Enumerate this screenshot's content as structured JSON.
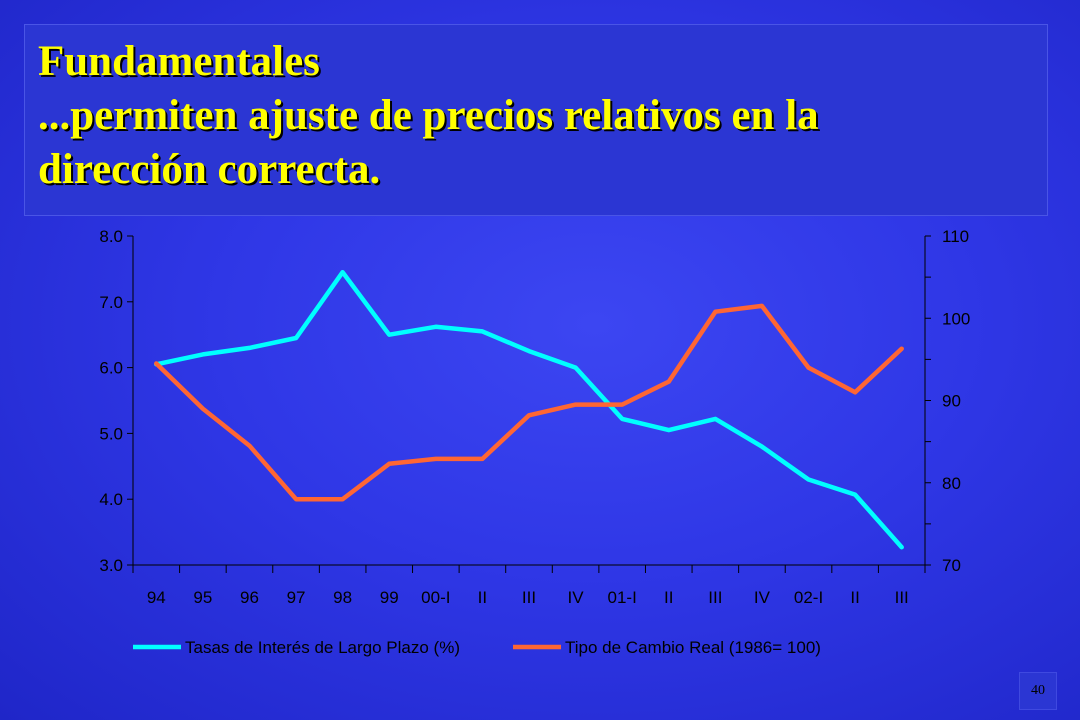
{
  "slide": {
    "title_line1": "Fundamentales",
    "title_line2": "...permiten ajuste de precios relativos en la",
    "title_line3": "dirección correcta.",
    "page_number": "40"
  },
  "colors": {
    "title_text": "#ffff00",
    "series_tasas": "#00ffff",
    "series_tipo": "#ff6633"
  },
  "chart_data": {
    "type": "line",
    "categories": [
      "94",
      "95",
      "96",
      "97",
      "98",
      "99",
      "00-I",
      "II",
      "III",
      "IV",
      "01-I",
      "II",
      "III",
      "IV",
      "02-I",
      "II",
      "III"
    ],
    "y_left": {
      "ylim": [
        3.0,
        8.0
      ],
      "ticks": [
        "8.0",
        "7.0",
        "6.0",
        "5.0",
        "4.0",
        "3.0"
      ],
      "tick_values": [
        8,
        7,
        6,
        5,
        4,
        3
      ]
    },
    "y_right": {
      "ylim": [
        70,
        110
      ],
      "ticks": [
        "110",
        "100",
        "90",
        "80",
        "70"
      ],
      "tick_values": [
        110,
        100,
        90,
        80,
        70
      ]
    },
    "series": [
      {
        "name": "Tasas de Interés de Largo Plazo (%)",
        "axis": "left",
        "color": "#00ffff",
        "values": [
          6.05,
          6.2,
          6.3,
          6.45,
          7.45,
          6.5,
          6.62,
          6.55,
          6.25,
          6.0,
          5.22,
          5.05,
          5.22,
          4.8,
          4.3,
          4.07,
          3.27
        ]
      },
      {
        "name": "Tipo de Cambio Real (1986= 100)",
        "axis": "right",
        "color": "#ff6633",
        "values": [
          94.5,
          89,
          84.5,
          78,
          78,
          82.3,
          82.9,
          82.9,
          88.2,
          89.5,
          89.5,
          92.3,
          100.8,
          101.5,
          94,
          91,
          96.3
        ]
      }
    ],
    "legend_position": "bottom",
    "grid": false
  }
}
